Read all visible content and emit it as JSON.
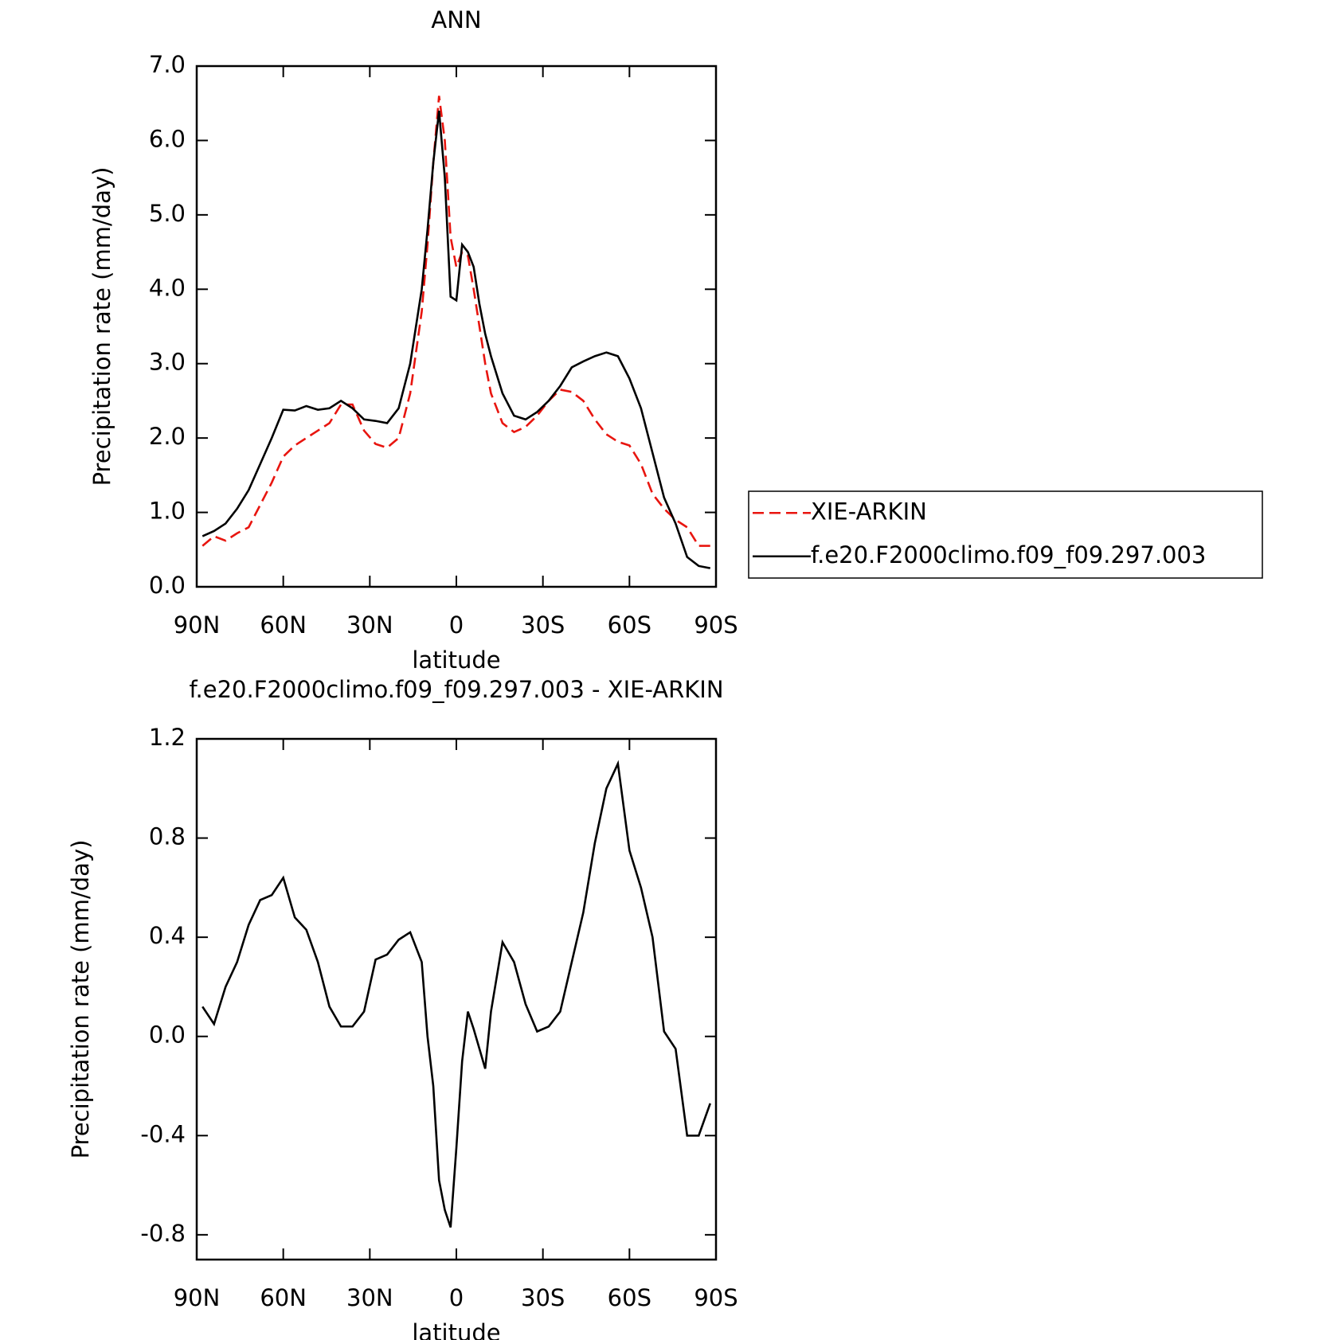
{
  "chart_data": [
    {
      "type": "line",
      "title": "ANN",
      "xlabel": "latitude",
      "ylabel": "Precipitation rate (mm/day)",
      "x": [
        88,
        84,
        80,
        76,
        72,
        68,
        64,
        60,
        56,
        52,
        48,
        44,
        40,
        36,
        32,
        28,
        24,
        20,
        16,
        12,
        10,
        8,
        6,
        4,
        2,
        0,
        -2,
        -4,
        -6,
        -8,
        -10,
        -12,
        -16,
        -20,
        -24,
        -28,
        -32,
        -36,
        -40,
        -44,
        -48,
        -52,
        -56,
        -60,
        -64,
        -68,
        -72,
        -76,
        -80,
        -84,
        -88
      ],
      "xlim": [
        90,
        -90
      ],
      "xticks": [
        {
          "value": 90,
          "label": "90N"
        },
        {
          "value": 60,
          "label": "60N"
        },
        {
          "value": 30,
          "label": "30N"
        },
        0,
        {
          "value": -30,
          "label": "30S"
        },
        {
          "value": -60,
          "label": "60S"
        },
        {
          "value": -90,
          "label": "90S"
        }
      ],
      "ylim": [
        0,
        7
      ],
      "yticks": [
        {
          "value": 0,
          "label": "0.0"
        },
        {
          "value": 1,
          "label": "1.0"
        },
        {
          "value": 2,
          "label": "2.0"
        },
        {
          "value": 3,
          "label": "3.0"
        },
        {
          "value": 4,
          "label": "4.0"
        },
        {
          "value": 5,
          "label": "5.0"
        },
        {
          "value": 6,
          "label": "6.0"
        },
        {
          "value": 7,
          "label": "7.0"
        }
      ],
      "legend": "right",
      "series": [
        {
          "name": "XIE-ARKIN",
          "color": "#e8150f",
          "linestyle": "dashed",
          "values": [
            0.55,
            0.68,
            0.62,
            0.72,
            0.8,
            1.1,
            1.4,
            1.75,
            1.9,
            2.0,
            2.1,
            2.2,
            2.45,
            2.45,
            2.1,
            1.92,
            1.87,
            2.0,
            2.6,
            3.7,
            4.6,
            5.7,
            6.6,
            6.0,
            4.7,
            4.3,
            4.5,
            4.45,
            4.0,
            3.5,
            3.0,
            2.6,
            2.2,
            2.08,
            2.15,
            2.3,
            2.5,
            2.65,
            2.62,
            2.5,
            2.25,
            2.05,
            1.95,
            1.9,
            1.65,
            1.25,
            1.05,
            0.9,
            0.8,
            0.55,
            0.55
          ]
        },
        {
          "name": "f.e20.F2000climo.f09_f09.297.003",
          "color": "#000000",
          "linestyle": "solid",
          "values": [
            0.68,
            0.75,
            0.85,
            1.05,
            1.3,
            1.65,
            2.0,
            2.38,
            2.37,
            2.43,
            2.38,
            2.4,
            2.5,
            2.4,
            2.25,
            2.23,
            2.2,
            2.4,
            3.0,
            4.0,
            4.8,
            5.7,
            6.4,
            5.5,
            3.9,
            3.85,
            4.6,
            4.5,
            4.3,
            3.8,
            3.4,
            3.1,
            2.6,
            2.3,
            2.25,
            2.35,
            2.5,
            2.7,
            2.95,
            3.03,
            3.1,
            3.15,
            3.1,
            2.8,
            2.4,
            1.8,
            1.2,
            0.85,
            0.4,
            0.28,
            0.25
          ]
        }
      ]
    },
    {
      "type": "line",
      "title": "f.e20.F2000climo.f09_f09.297.003 - XIE-ARKIN",
      "xlabel": "latitude",
      "ylabel": "Precipitation rate (mm/day)",
      "x": [
        88,
        84,
        80,
        76,
        72,
        68,
        64,
        60,
        56,
        52,
        48,
        44,
        40,
        36,
        32,
        28,
        24,
        20,
        16,
        12,
        10,
        8,
        6,
        4,
        2,
        0,
        -2,
        -4,
        -6,
        -8,
        -10,
        -12,
        -16,
        -20,
        -24,
        -28,
        -32,
        -36,
        -40,
        -44,
        -48,
        -52,
        -56,
        -60,
        -64,
        -68,
        -72,
        -76,
        -80,
        -84,
        -88
      ],
      "xlim": [
        90,
        -90
      ],
      "xticks": [
        {
          "value": 90,
          "label": "90N"
        },
        {
          "value": 60,
          "label": "60N"
        },
        {
          "value": 30,
          "label": "30N"
        },
        0,
        {
          "value": -30,
          "label": "30S"
        },
        {
          "value": -60,
          "label": "60S"
        },
        {
          "value": -90,
          "label": "90S"
        }
      ],
      "ylim": [
        -0.9,
        1.2
      ],
      "yticks": [
        1.2,
        0.8,
        0.4,
        {
          "value": 0,
          "label": "0.0"
        },
        -0.4,
        -0.8
      ],
      "series": [
        {
          "color": "#000000",
          "linestyle": "solid",
          "values": [
            0.12,
            0.05,
            0.2,
            0.3,
            0.45,
            0.55,
            0.57,
            0.64,
            0.48,
            0.43,
            0.3,
            0.12,
            0.04,
            0.04,
            0.1,
            0.31,
            0.33,
            0.39,
            0.42,
            0.3,
            0.0,
            -0.2,
            -0.58,
            -0.7,
            -0.77,
            -0.45,
            -0.1,
            0.1,
            0.03,
            -0.05,
            -0.13,
            0.1,
            0.38,
            0.3,
            0.13,
            0.02,
            0.04,
            0.1,
            0.3,
            0.5,
            0.78,
            1.0,
            1.1,
            0.75,
            0.6,
            0.4,
            0.02,
            -0.05,
            -0.4,
            -0.4,
            -0.27
          ]
        }
      ]
    }
  ]
}
